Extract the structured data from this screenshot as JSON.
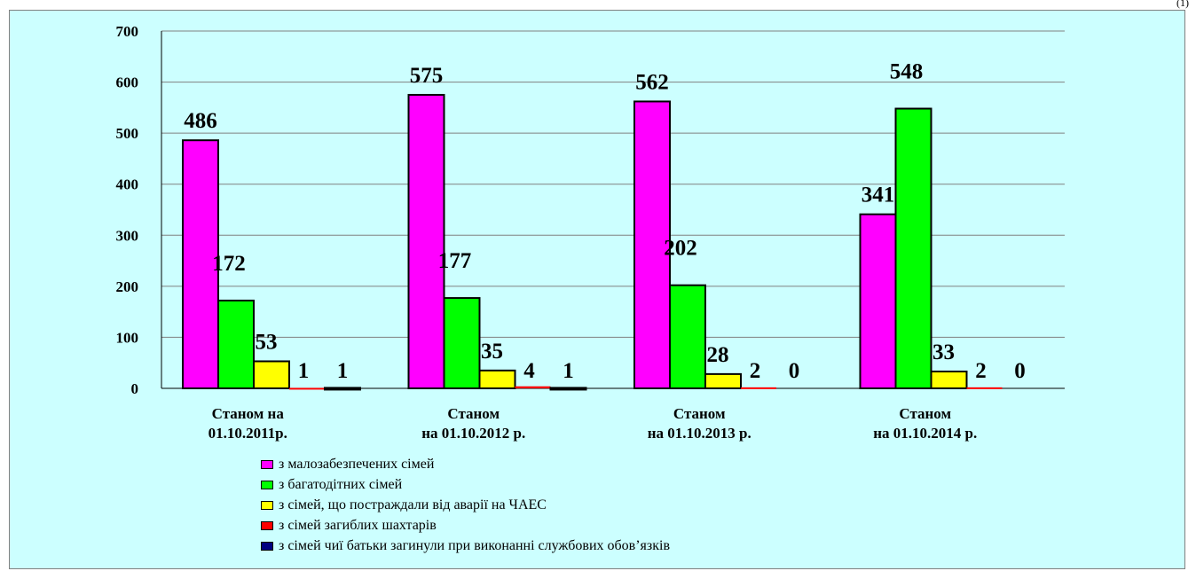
{
  "corner_mark": "(1)",
  "chart_data": {
    "type": "bar",
    "title": "",
    "xlabel": "",
    "ylabel": "",
    "ylim": [
      0,
      700
    ],
    "yticks": [
      0,
      100,
      200,
      300,
      400,
      500,
      600,
      700
    ],
    "grid": true,
    "legend_position": "bottom",
    "categories": [
      [
        "Станом на",
        "01.10.2011р."
      ],
      [
        "Станом",
        "на 01.10.2012 р."
      ],
      [
        "Станом",
        "на 01.10.2013 р."
      ],
      [
        "Станом",
        "на 01.10.2014 р."
      ]
    ],
    "series": [
      {
        "name": "з малозабезпечених сімей",
        "color": "#ff00ff",
        "values": [
          486,
          575,
          562,
          341
        ]
      },
      {
        "name": "з багатодітних сімей",
        "color": "#00ff00",
        "values": [
          172,
          177,
          202,
          548
        ]
      },
      {
        "name": "з сімей, що постраждали від аварії на ЧАЕС",
        "color": "#ffff00",
        "values": [
          53,
          35,
          28,
          33
        ]
      },
      {
        "name": "з сімей загиблих шахтарів",
        "color": "#ff0000",
        "values": [
          1,
          4,
          2,
          2
        ]
      },
      {
        "name": "з сімей чиї батьки загинули при виконанні  службових обов’язків",
        "color": "#000080",
        "values": [
          1,
          1,
          0,
          0
        ]
      }
    ]
  }
}
